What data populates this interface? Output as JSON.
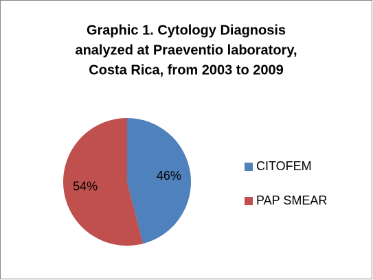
{
  "chart_data": {
    "type": "pie",
    "title": [
      "Graphic 1. Cytology Diagnosis",
      "analyzed at Praeventio laboratory,",
      "Costa Rica, from 2003 to 2009"
    ],
    "categories": [
      "CITOFEM",
      "PAP SMEAR"
    ],
    "values": [
      46,
      54
    ],
    "value_labels": [
      "46%",
      "54%"
    ],
    "colors": [
      "#4f81bd",
      "#c0504d"
    ],
    "legend": "right"
  }
}
